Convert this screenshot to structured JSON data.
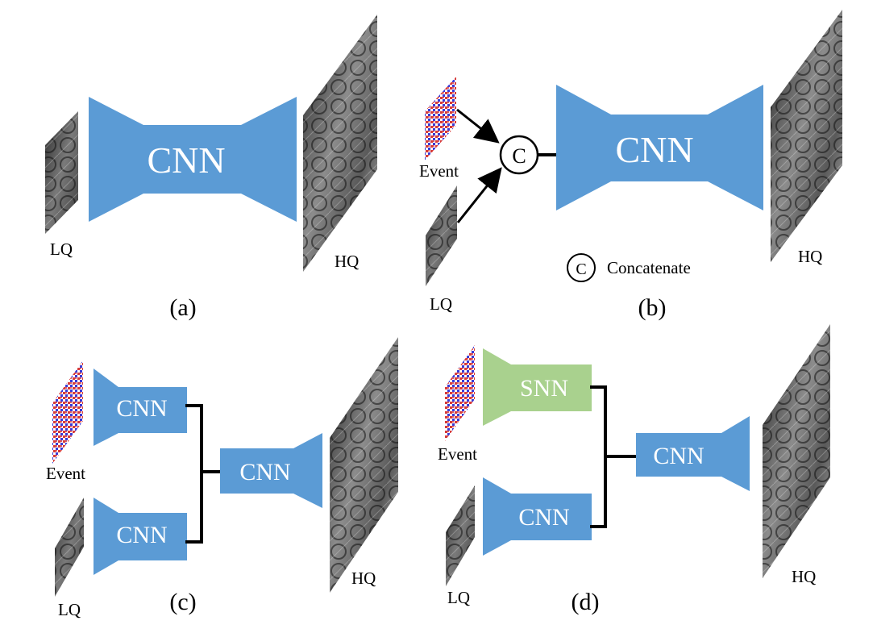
{
  "panels": {
    "a": {
      "caption": "(a)",
      "network_label": "CNN",
      "input_label": "LQ",
      "output_label": "HQ"
    },
    "b": {
      "caption": "(b)",
      "network_label": "CNN",
      "event_label": "Event",
      "input_label": "LQ",
      "output_label": "HQ",
      "concat_symbol": "C",
      "legend_symbol": "C",
      "legend_text": "Concatenate"
    },
    "c": {
      "caption": "(c)",
      "event_branch_label": "CNN",
      "image_branch_label": "CNN",
      "fusion_label": "CNN",
      "event_label": "Event",
      "input_label": "LQ",
      "output_label": "HQ"
    },
    "d": {
      "caption": "(d)",
      "event_branch_label": "SNN",
      "image_branch_label": "CNN",
      "fusion_label": "CNN",
      "event_label": "Event",
      "input_label": "LQ",
      "output_label": "HQ"
    }
  },
  "colors": {
    "cnn_block": "#5b9bd5",
    "snn_block": "#a9d18e",
    "event_red": "#d63a3a",
    "event_blue": "#3a3ad6",
    "line": "#000000"
  }
}
